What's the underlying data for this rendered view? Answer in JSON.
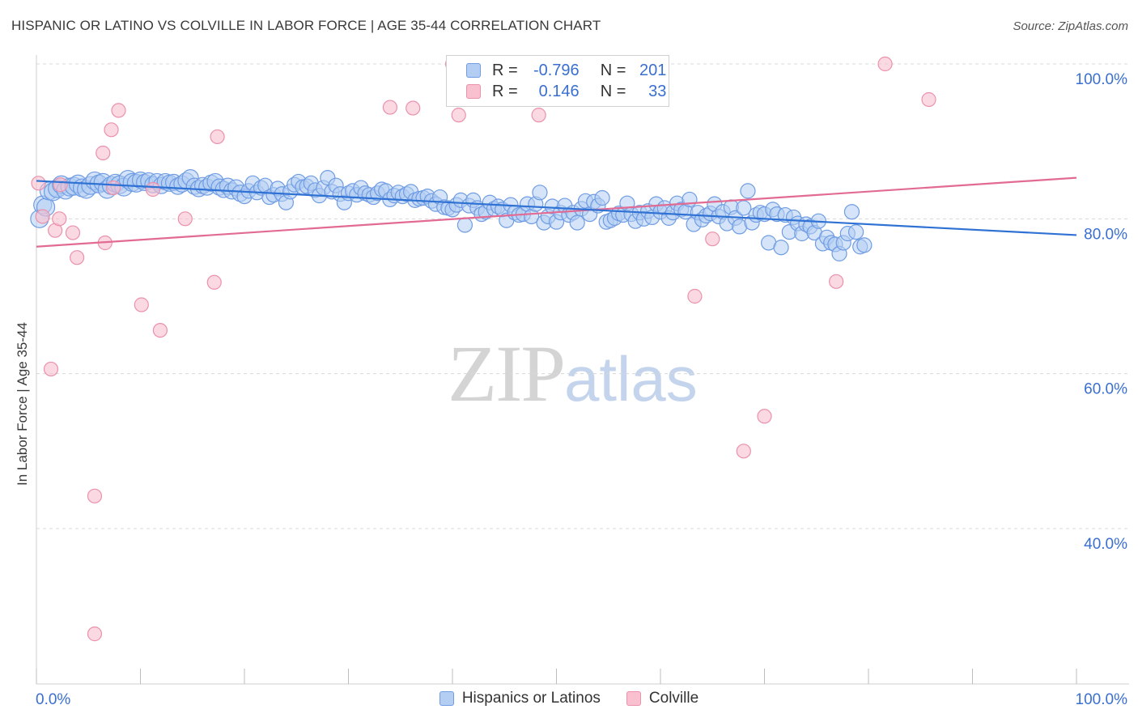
{
  "title": "HISPANIC OR LATINO VS COLVILLE IN LABOR FORCE | AGE 35-44 CORRELATION CHART",
  "source": "Source: ZipAtlas.com",
  "watermark": {
    "zip": "ZIP",
    "atlas": "atlas"
  },
  "legend": {
    "rows": [
      {
        "r_label": "R =",
        "r_value": "-0.796",
        "n_label": "N =",
        "n_value": "201"
      },
      {
        "r_label": "R =",
        "r_value": "0.146",
        "n_label": "N =",
        "n_value": "33"
      }
    ]
  },
  "bottom_legend": [
    "Hispanics or Latinos",
    "Colville"
  ],
  "colors": {
    "hispanic_fill": "#b3cdf3",
    "hispanic_stroke": "#6f9ce3",
    "hispanic_line": "#2f72d4",
    "colville_fill": "#f9c0cf",
    "colville_stroke": "#eb91ab",
    "colville_line": "#e26b93",
    "grid": "#d8d8d8",
    "tick_label": "#3a6fd0"
  },
  "chart_data": {
    "type": "scatter",
    "title": "HISPANIC OR LATINO VS COLVILLE IN LABOR FORCE | AGE 35-44 CORRELATION CHART",
    "xlabel": "",
    "ylabel": "In Labor Force | Age 35-44",
    "xlim": [
      0,
      100
    ],
    "ylim": [
      18,
      100
    ],
    "x_tick_labels": [
      "0.0%",
      "100.0%"
    ],
    "y_ticks": [
      40,
      60,
      80,
      100
    ],
    "y_tick_labels": [
      "40.0%",
      "60.0%",
      "80.0%",
      "100.0%"
    ],
    "grid": true,
    "legend_position": "top-center",
    "series": [
      {
        "name": "Hispanics or Latinos",
        "r": -0.796,
        "n": 201,
        "trend": {
          "x": [
            0,
            100
          ],
          "y": [
            84.9,
            77.9
          ]
        },
        "points": [
          [
            0.3,
            80.0
          ],
          [
            0.6,
            81.8
          ],
          [
            0.9,
            81.5
          ],
          [
            1.2,
            83.6
          ],
          [
            1.6,
            83.5
          ],
          [
            2.0,
            83.9
          ],
          [
            2.4,
            84.4
          ],
          [
            2.8,
            83.7
          ],
          [
            3.2,
            84.1
          ],
          [
            3.6,
            84.2
          ],
          [
            4.0,
            84.5
          ],
          [
            4.4,
            84.0
          ],
          [
            4.8,
            83.8
          ],
          [
            5.2,
            84.3
          ],
          [
            5.6,
            84.9
          ],
          [
            6.0,
            84.5
          ],
          [
            6.4,
            84.7
          ],
          [
            6.8,
            83.8
          ],
          [
            7.2,
            84.3
          ],
          [
            7.6,
            84.6
          ],
          [
            8.0,
            84.4
          ],
          [
            8.4,
            84.1
          ],
          [
            8.8,
            85.1
          ],
          [
            9.2,
            84.7
          ],
          [
            9.6,
            84.6
          ],
          [
            10.0,
            85.0
          ],
          [
            10.4,
            84.7
          ],
          [
            10.8,
            84.9
          ],
          [
            11.2,
            84.4
          ],
          [
            11.6,
            84.8
          ],
          [
            12.0,
            84.3
          ],
          [
            12.4,
            84.8
          ],
          [
            12.8,
            84.6
          ],
          [
            13.2,
            84.7
          ],
          [
            13.6,
            84.2
          ],
          [
            14.0,
            84.5
          ],
          [
            14.4,
            84.9
          ],
          [
            14.8,
            85.3
          ],
          [
            15.2,
            84.2
          ],
          [
            15.6,
            83.9
          ],
          [
            16.0,
            84.3
          ],
          [
            16.4,
            84.1
          ],
          [
            16.8,
            84.6
          ],
          [
            17.2,
            84.8
          ],
          [
            17.6,
            84.1
          ],
          [
            18.0,
            83.8
          ],
          [
            18.4,
            84.2
          ],
          [
            18.8,
            83.6
          ],
          [
            19.2,
            84.0
          ],
          [
            19.6,
            83.3
          ],
          [
            20.0,
            82.9
          ],
          [
            20.4,
            83.6
          ],
          [
            20.8,
            84.6
          ],
          [
            21.2,
            83.4
          ],
          [
            21.6,
            84.0
          ],
          [
            22.0,
            84.3
          ],
          [
            22.4,
            82.8
          ],
          [
            22.8,
            83.1
          ],
          [
            23.2,
            83.9
          ],
          [
            23.6,
            83.2
          ],
          [
            24.0,
            82.1
          ],
          [
            24.4,
            83.5
          ],
          [
            24.8,
            84.4
          ],
          [
            25.2,
            84.8
          ],
          [
            25.6,
            84.1
          ],
          [
            26.0,
            84.2
          ],
          [
            26.4,
            84.6
          ],
          [
            26.8,
            83.7
          ],
          [
            27.2,
            83.0
          ],
          [
            27.6,
            84.0
          ],
          [
            28.0,
            85.3
          ],
          [
            28.4,
            83.5
          ],
          [
            28.8,
            84.3
          ],
          [
            29.2,
            83.2
          ],
          [
            29.6,
            82.1
          ],
          [
            30.0,
            83.3
          ],
          [
            30.4,
            83.6
          ],
          [
            30.8,
            83.1
          ],
          [
            31.2,
            84.0
          ],
          [
            31.6,
            83.3
          ],
          [
            32.0,
            83.1
          ],
          [
            32.4,
            82.8
          ],
          [
            32.8,
            83.3
          ],
          [
            33.2,
            83.8
          ],
          [
            33.6,
            83.6
          ],
          [
            34.0,
            82.5
          ],
          [
            34.4,
            83.0
          ],
          [
            34.8,
            83.4
          ],
          [
            35.2,
            82.9
          ],
          [
            35.6,
            83.2
          ],
          [
            36.0,
            83.5
          ],
          [
            36.4,
            82.4
          ],
          [
            36.8,
            82.6
          ],
          [
            37.2,
            82.7
          ],
          [
            37.6,
            82.9
          ],
          [
            38.0,
            82.3
          ],
          [
            38.4,
            81.9
          ],
          [
            38.8,
            82.8
          ],
          [
            39.2,
            81.5
          ],
          [
            39.6,
            81.4
          ],
          [
            40.0,
            81.2
          ],
          [
            40.4,
            81.8
          ],
          [
            40.8,
            82.4
          ],
          [
            41.2,
            79.2
          ],
          [
            41.6,
            81.7
          ],
          [
            42.0,
            82.4
          ],
          [
            42.4,
            81.4
          ],
          [
            42.8,
            80.6
          ],
          [
            43.2,
            80.9
          ],
          [
            43.6,
            82.1
          ],
          [
            44.0,
            81.3
          ],
          [
            44.4,
            81.6
          ],
          [
            44.8,
            81.2
          ],
          [
            45.2,
            79.8
          ],
          [
            45.6,
            81.8
          ],
          [
            46.0,
            80.8
          ],
          [
            46.4,
            80.5
          ],
          [
            46.8,
            80.6
          ],
          [
            47.2,
            81.9
          ],
          [
            47.6,
            80.3
          ],
          [
            48.0,
            81.9
          ],
          [
            48.4,
            83.4
          ],
          [
            48.8,
            79.5
          ],
          [
            49.2,
            80.3
          ],
          [
            49.6,
            81.6
          ],
          [
            50.0,
            79.6
          ],
          [
            50.4,
            80.8
          ],
          [
            50.8,
            81.7
          ],
          [
            51.2,
            80.5
          ],
          [
            51.6,
            80.8
          ],
          [
            52.0,
            79.5
          ],
          [
            52.4,
            81.3
          ],
          [
            52.8,
            82.3
          ],
          [
            53.2,
            80.6
          ],
          [
            53.6,
            82.2
          ],
          [
            54.0,
            81.7
          ],
          [
            54.4,
            82.7
          ],
          [
            54.8,
            79.6
          ],
          [
            55.2,
            79.8
          ],
          [
            55.6,
            80.1
          ],
          [
            56.0,
            80.7
          ],
          [
            56.4,
            80.5
          ],
          [
            56.8,
            82.0
          ],
          [
            57.2,
            80.6
          ],
          [
            57.6,
            79.7
          ],
          [
            58.0,
            80.8
          ],
          [
            58.4,
            80.0
          ],
          [
            58.8,
            81.0
          ],
          [
            59.2,
            80.2
          ],
          [
            59.6,
            81.9
          ],
          [
            60.0,
            80.9
          ],
          [
            60.4,
            81.4
          ],
          [
            60.8,
            80.1
          ],
          [
            61.2,
            80.8
          ],
          [
            61.6,
            82.0
          ],
          [
            62.0,
            81.2
          ],
          [
            62.4,
            80.9
          ],
          [
            62.8,
            82.5
          ],
          [
            63.2,
            79.3
          ],
          [
            63.6,
            80.8
          ],
          [
            64.0,
            79.9
          ],
          [
            64.4,
            80.4
          ],
          [
            64.8,
            80.7
          ],
          [
            65.2,
            81.9
          ],
          [
            65.6,
            80.3
          ],
          [
            66.0,
            80.9
          ],
          [
            66.4,
            79.4
          ],
          [
            66.8,
            81.5
          ],
          [
            67.2,
            80.1
          ],
          [
            67.6,
            79.0
          ],
          [
            68.0,
            81.4
          ],
          [
            68.4,
            83.6
          ],
          [
            68.8,
            79.5
          ],
          [
            69.2,
            80.5
          ],
          [
            69.6,
            80.8
          ],
          [
            70.0,
            80.6
          ],
          [
            70.4,
            76.9
          ],
          [
            70.8,
            81.2
          ],
          [
            71.2,
            80.6
          ],
          [
            71.6,
            76.3
          ],
          [
            72.0,
            80.5
          ],
          [
            72.4,
            78.3
          ],
          [
            72.8,
            80.2
          ],
          [
            73.2,
            79.4
          ],
          [
            73.6,
            78.1
          ],
          [
            74.0,
            79.3
          ],
          [
            74.4,
            79.0
          ],
          [
            74.8,
            78.2
          ],
          [
            75.2,
            79.7
          ],
          [
            75.6,
            76.8
          ],
          [
            76.0,
            77.6
          ],
          [
            76.4,
            76.9
          ],
          [
            76.8,
            76.7
          ],
          [
            77.2,
            75.5
          ],
          [
            77.6,
            76.9
          ],
          [
            78.0,
            78.1
          ],
          [
            78.4,
            80.9
          ],
          [
            78.8,
            78.3
          ],
          [
            79.2,
            76.4
          ],
          [
            79.6,
            76.6
          ]
        ]
      },
      {
        "name": "Colville",
        "r": 0.146,
        "n": 33,
        "trend": {
          "x": [
            0,
            100
          ],
          "y": [
            76.4,
            85.3
          ]
        },
        "points": [
          [
            0.2,
            84.6
          ],
          [
            0.6,
            80.3
          ],
          [
            1.4,
            60.6
          ],
          [
            1.8,
            78.5
          ],
          [
            2.2,
            80.0
          ],
          [
            3.5,
            78.2
          ],
          [
            3.9,
            75.0
          ],
          [
            5.6,
            44.2
          ],
          [
            5.6,
            26.4
          ],
          [
            6.4,
            88.5
          ],
          [
            6.6,
            76.9
          ],
          [
            7.2,
            91.5
          ],
          [
            7.9,
            94.0
          ],
          [
            10.1,
            68.9
          ],
          [
            11.9,
            65.6
          ],
          [
            14.3,
            80.0
          ],
          [
            17.1,
            71.8
          ],
          [
            17.4,
            90.6
          ],
          [
            34.0,
            94.4
          ],
          [
            36.2,
            94.3
          ],
          [
            40.6,
            93.4
          ],
          [
            48.3,
            93.4
          ],
          [
            63.3,
            70.0
          ],
          [
            65.0,
            77.4
          ],
          [
            68.0,
            50.0
          ],
          [
            70.0,
            54.5
          ],
          [
            76.9,
            71.9
          ],
          [
            81.6,
            100.0
          ],
          [
            85.8,
            95.4
          ],
          [
            40.0,
            100.0
          ],
          [
            2.3,
            84.4
          ],
          [
            7.4,
            84.0
          ],
          [
            11.2,
            83.8
          ]
        ]
      }
    ]
  }
}
